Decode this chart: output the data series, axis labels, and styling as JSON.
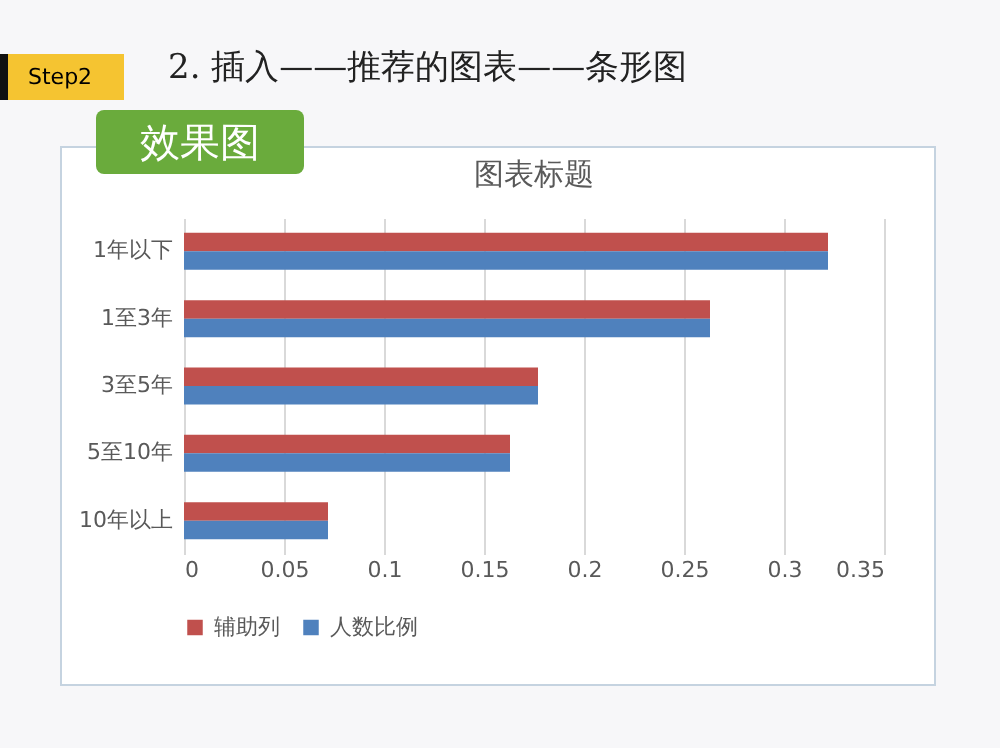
{
  "chart_data": {
    "type": "bar",
    "orientation": "horizontal",
    "title": "图表标题",
    "annotations": [
      "Step2",
      "2. 插入——推荐的图表——条形图",
      "效果图"
    ],
    "categories": [
      "1年以下",
      "1至3年",
      "3至5年",
      "5至10年",
      "10年以上"
    ],
    "series": [
      {
        "name": "辅助列",
        "color": "#c0504d",
        "values": [
          0.322,
          0.263,
          0.177,
          0.163,
          0.072
        ]
      },
      {
        "name": "人数比例",
        "color": "#4f81bd",
        "values": [
          0.322,
          0.263,
          0.177,
          0.163,
          0.072
        ]
      }
    ],
    "xlim": [
      0,
      0.35
    ],
    "xticks": [
      0,
      0.05,
      0.1,
      0.15,
      0.2,
      0.25,
      0.3,
      0.35
    ],
    "grid": "x",
    "legend": "bottom"
  }
}
